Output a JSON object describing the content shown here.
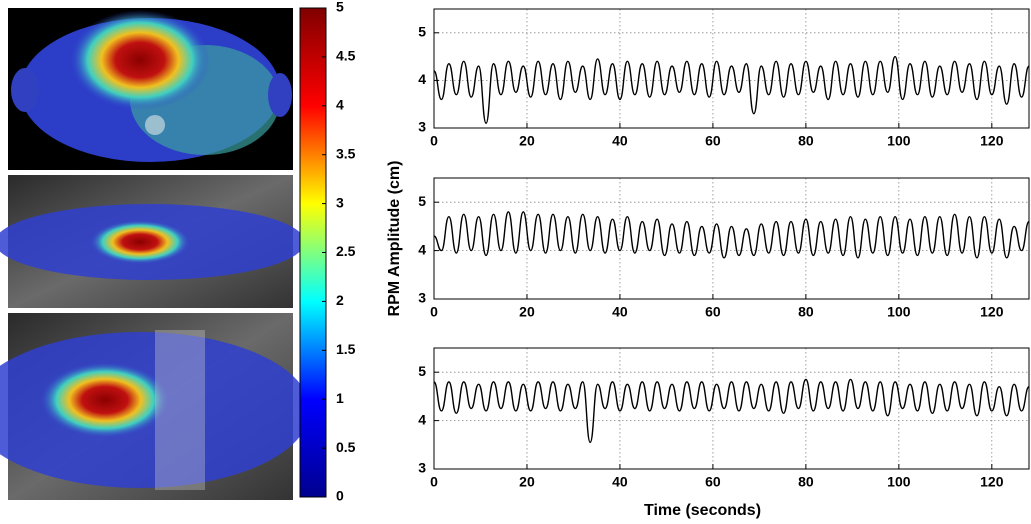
{
  "chart_data": [
    {
      "type": "colorbar",
      "colormap": "jet",
      "ylim": [
        0,
        5
      ],
      "yticks": [
        0,
        0.5,
        1,
        1.5,
        2,
        2.5,
        3,
        3.5,
        4,
        4.5,
        5
      ]
    },
    {
      "type": "line",
      "color": "#000000",
      "grid": true,
      "xlim": [
        0,
        128
      ],
      "ylim": [
        3,
        5.5
      ],
      "xticks": [
        0,
        20,
        40,
        60,
        80,
        100,
        120
      ],
      "yticks": [
        3,
        4,
        5
      ],
      "x": [
        0,
        1.6,
        3.2,
        4.8,
        6.4,
        8,
        9.6,
        11.2,
        12.8,
        14.4,
        16,
        17.6,
        19.2,
        20.8,
        22.4,
        24,
        25.6,
        27.2,
        28.8,
        30.4,
        32,
        33.6,
        35.2,
        36.8,
        38.4,
        40,
        41.6,
        43.2,
        44.8,
        46.4,
        48,
        49.6,
        51.2,
        52.8,
        54.4,
        56,
        57.6,
        59.2,
        60.8,
        62.4,
        64,
        65.6,
        67.2,
        68.8,
        70.4,
        72,
        73.6,
        75.2,
        76.8,
        78.4,
        80,
        81.6,
        83.2,
        84.8,
        86.4,
        88,
        89.6,
        91.2,
        92.8,
        94.4,
        96,
        97.6,
        99.2,
        100.8,
        102.4,
        104,
        105.6,
        107.2,
        108.8,
        110.4,
        112,
        113.6,
        115.2,
        116.8,
        118.4,
        120,
        121.6,
        123.2,
        124.8,
        126.4,
        128
      ],
      "values": [
        4.2,
        3.6,
        4.35,
        3.7,
        4.4,
        3.65,
        4.3,
        3.1,
        4.35,
        3.7,
        4.4,
        3.75,
        4.3,
        3.65,
        4.4,
        3.7,
        4.35,
        3.6,
        4.4,
        3.75,
        4.3,
        3.6,
        4.45,
        3.7,
        4.35,
        3.6,
        4.4,
        3.7,
        4.35,
        3.65,
        4.4,
        3.7,
        4.3,
        3.75,
        4.4,
        3.7,
        4.35,
        3.65,
        4.4,
        3.7,
        4.3,
        3.75,
        4.35,
        3.3,
        4.3,
        3.7,
        4.4,
        3.65,
        4.35,
        3.7,
        4.4,
        3.75,
        4.3,
        3.6,
        4.4,
        3.7,
        4.35,
        3.65,
        4.4,
        3.7,
        4.4,
        3.75,
        4.5,
        3.6,
        4.35,
        3.7,
        4.4,
        3.65,
        4.3,
        3.7,
        4.4,
        3.75,
        4.35,
        3.6,
        4.4,
        3.7,
        4.3,
        3.5,
        4.35,
        3.65,
        4.3
      ]
    },
    {
      "type": "line",
      "color": "#000000",
      "grid": true,
      "ylabel": "RPM Amplitude (cm)",
      "xlim": [
        0,
        128
      ],
      "ylim": [
        3,
        5.5
      ],
      "xticks": [
        0,
        20,
        40,
        60,
        80,
        100,
        120
      ],
      "yticks": [
        3,
        4,
        5
      ],
      "x": [
        0,
        1.6,
        3.2,
        4.8,
        6.4,
        8,
        9.6,
        11.2,
        12.8,
        14.4,
        16,
        17.6,
        19.2,
        20.8,
        22.4,
        24,
        25.6,
        27.2,
        28.8,
        30.4,
        32,
        33.6,
        35.2,
        36.8,
        38.4,
        40,
        41.6,
        43.2,
        44.8,
        46.4,
        48,
        49.6,
        51.2,
        52.8,
        54.4,
        56,
        57.6,
        59.2,
        60.8,
        62.4,
        64,
        65.6,
        67.2,
        68.8,
        70.4,
        72,
        73.6,
        75.2,
        76.8,
        78.4,
        80,
        81.6,
        83.2,
        84.8,
        86.4,
        88,
        89.6,
        91.2,
        92.8,
        94.4,
        96,
        97.6,
        99.2,
        100.8,
        102.4,
        104,
        105.6,
        107.2,
        108.8,
        110.4,
        112,
        113.6,
        115.2,
        116.8,
        118.4,
        120,
        121.6,
        123.2,
        124.8,
        126.4,
        128
      ],
      "values": [
        4.3,
        4.0,
        4.7,
        3.95,
        4.75,
        4.0,
        4.7,
        3.9,
        4.75,
        4.0,
        4.8,
        3.95,
        4.8,
        4.0,
        4.75,
        3.95,
        4.75,
        4.0,
        4.7,
        3.95,
        4.75,
        4.0,
        4.7,
        3.95,
        4.65,
        4.0,
        4.7,
        3.95,
        4.6,
        4.0,
        4.65,
        3.9,
        4.55,
        3.95,
        4.6,
        3.9,
        4.5,
        3.95,
        4.55,
        3.85,
        4.5,
        3.9,
        4.45,
        3.9,
        4.55,
        3.95,
        4.6,
        3.9,
        4.6,
        3.95,
        4.65,
        3.9,
        4.6,
        3.95,
        4.65,
        3.9,
        4.7,
        3.85,
        4.65,
        3.95,
        4.7,
        3.9,
        4.7,
        3.95,
        4.65,
        3.9,
        4.7,
        3.95,
        4.7,
        3.9,
        4.75,
        3.95,
        4.7,
        3.85,
        4.7,
        3.95,
        4.65,
        3.85,
        4.5,
        4.0,
        4.6
      ]
    },
    {
      "type": "line",
      "color": "#000000",
      "grid": true,
      "xlabel": "Time (seconds)",
      "xlim": [
        0,
        128
      ],
      "ylim": [
        3,
        5.5
      ],
      "xticks": [
        0,
        20,
        40,
        60,
        80,
        100,
        120
      ],
      "yticks": [
        3,
        4,
        5
      ],
      "x": [
        0,
        1.6,
        3.2,
        4.8,
        6.4,
        8,
        9.6,
        11.2,
        12.8,
        14.4,
        16,
        17.6,
        19.2,
        20.8,
        22.4,
        24,
        25.6,
        27.2,
        28.8,
        30.4,
        32,
        33.6,
        35.2,
        36.8,
        38.4,
        40,
        41.6,
        43.2,
        44.8,
        46.4,
        48,
        49.6,
        51.2,
        52.8,
        54.4,
        56,
        57.6,
        59.2,
        60.8,
        62.4,
        64,
        65.6,
        67.2,
        68.8,
        70.4,
        72,
        73.6,
        75.2,
        76.8,
        78.4,
        80,
        81.6,
        83.2,
        84.8,
        86.4,
        88,
        89.6,
        91.2,
        92.8,
        94.4,
        96,
        97.6,
        99.2,
        100.8,
        102.4,
        104,
        105.6,
        107.2,
        108.8,
        110.4,
        112,
        113.6,
        115.2,
        116.8,
        118.4,
        120,
        121.6,
        123.2,
        124.8,
        126.4,
        128
      ],
      "values": [
        4.8,
        4.2,
        4.8,
        4.15,
        4.8,
        4.25,
        4.75,
        4.2,
        4.8,
        4.25,
        4.8,
        4.2,
        4.75,
        4.2,
        4.8,
        4.25,
        4.8,
        4.2,
        4.75,
        4.25,
        4.8,
        3.55,
        4.75,
        4.25,
        4.8,
        4.2,
        4.75,
        4.25,
        4.8,
        4.2,
        4.8,
        4.25,
        4.75,
        4.2,
        4.8,
        4.25,
        4.8,
        4.2,
        4.75,
        4.25,
        4.8,
        4.2,
        4.8,
        4.25,
        4.75,
        4.2,
        4.8,
        4.15,
        4.8,
        4.25,
        4.85,
        4.2,
        4.8,
        4.25,
        4.8,
        4.2,
        4.85,
        4.25,
        4.8,
        4.2,
        4.8,
        4.1,
        4.8,
        4.25,
        4.75,
        4.2,
        4.8,
        4.15,
        4.75,
        4.2,
        4.8,
        4.25,
        4.75,
        4.1,
        4.8,
        4.2,
        4.7,
        4.1,
        4.75,
        4.2,
        4.7
      ]
    }
  ]
}
